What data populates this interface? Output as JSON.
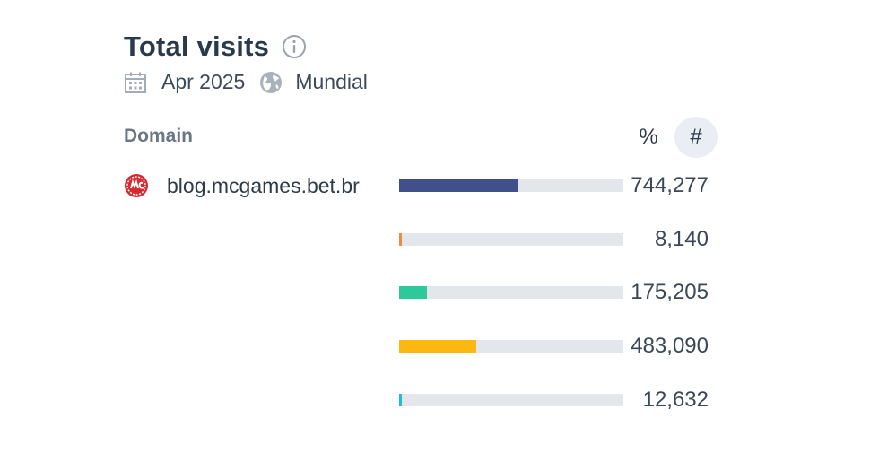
{
  "header": {
    "title": "Total visits",
    "period": "Apr 2025",
    "region": "Mundial"
  },
  "table": {
    "column_label": "Domain",
    "toggle_percent": "%",
    "toggle_number": "#",
    "active_toggle": "#"
  },
  "domain": {
    "name": "blog.mcgames.bet.br",
    "icon": "mcgames-favicon"
  },
  "rows": [
    {
      "value": "744,277",
      "fraction": 0.53,
      "color": "#3f508b"
    },
    {
      "value": "8,140",
      "fraction": 0.012,
      "color": "#f08a3c"
    },
    {
      "value": "175,205",
      "fraction": 0.125,
      "color": "#2ec99a"
    },
    {
      "value": "483,090",
      "fraction": 0.345,
      "color": "#fbb813"
    },
    {
      "value": "12,632",
      "fraction": 0.012,
      "color": "#26b9d8"
    }
  ],
  "icons": {
    "info": "info-icon",
    "calendar": "calendar-icon",
    "globe": "globe-icon"
  }
}
